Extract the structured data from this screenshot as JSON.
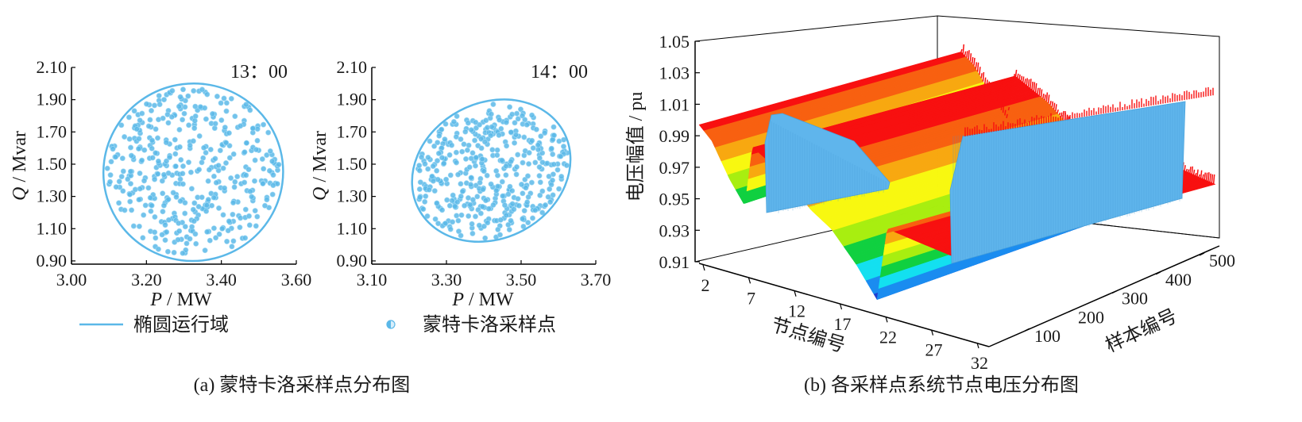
{
  "chart_data": [
    {
      "type": "scatter",
      "annotation": "13：00",
      "xlabel_var": "P",
      "xlabel_unit": " / MW",
      "ylabel_var": "Q",
      "ylabel_unit": " / Mvar",
      "xlim": [
        3.0,
        3.6
      ],
      "ylim": [
        0.88,
        2.1
      ],
      "xticks": [
        "3.00",
        "3.20",
        "3.40",
        "3.60"
      ],
      "yticks": [
        "0.90",
        "1.10",
        "1.30",
        "1.50",
        "1.70",
        "1.90",
        "2.10"
      ],
      "ellipse": {
        "cx": 3.325,
        "cy": 1.45,
        "a": 0.24,
        "b": 0.55,
        "angle_deg": -14
      },
      "point_count": 420,
      "color": "#5bb8e8"
    },
    {
      "type": "scatter",
      "annotation": "14：00",
      "xlabel_var": "P",
      "xlabel_unit": " / MW",
      "ylabel_var": "Q",
      "ylabel_unit": " / Mvar",
      "xlim": [
        3.1,
        3.7
      ],
      "ylim": [
        0.88,
        2.1
      ],
      "xticks": [
        "3.10",
        "3.30",
        "3.50",
        "3.70"
      ],
      "yticks": [
        "0.90",
        "1.10",
        "1.30",
        "1.50",
        "1.70",
        "1.90",
        "2.10"
      ],
      "ellipse": {
        "cx": 3.42,
        "cy": 1.46,
        "a": 0.22,
        "b": 0.42,
        "angle_deg": -28
      },
      "point_count": 420,
      "color": "#5bb8e8"
    },
    {
      "type": "surface3d",
      "zlabel": "电压幅值 / pu",
      "xlabel": "节点编号",
      "ylabel": "样本编号",
      "zlim": [
        0.91,
        1.05
      ],
      "zticks": [
        "1.05",
        "1.03",
        "1.01",
        "0.99",
        "0.97",
        "0.95",
        "0.93",
        "0.91"
      ],
      "xticks": [
        "2",
        "7",
        "12",
        "17",
        "22",
        "27",
        "32"
      ],
      "yticks": [
        "100",
        "200",
        "300",
        "400",
        "500"
      ],
      "colors": [
        "#1f3fd0",
        "#1a8cf0",
        "#13e0f0",
        "#10d040",
        "#a8ee10",
        "#f8f810",
        "#f8a810",
        "#f86010",
        "#f81010"
      ]
    }
  ],
  "legend": {
    "line_label": "椭圆运行域",
    "point_label": "蒙特卡洛采样点",
    "line_color": "#5bb8e8"
  },
  "captions": {
    "a": "(a)  蒙特卡洛采样点分布图",
    "b": "(b)  各采样点系统节点电压分布图"
  }
}
